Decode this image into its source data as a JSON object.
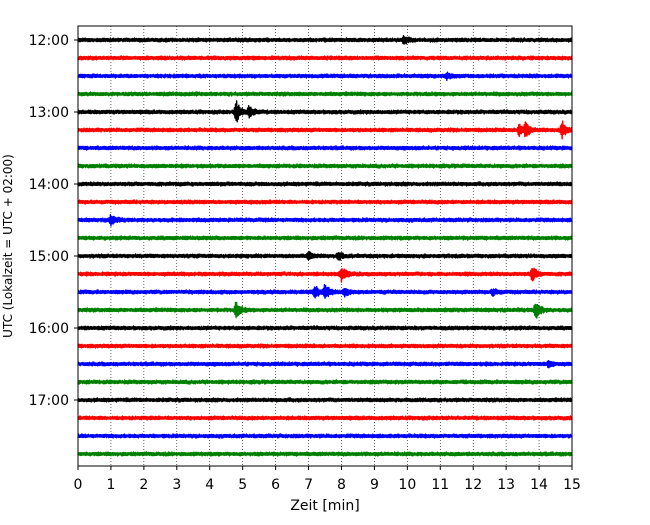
{
  "chart_data": {
    "type": "line",
    "title": "",
    "xlabel": "Zeit  [min]",
    "ylabel": "UTC (Lokalzeit = UTC + 02:00)",
    "xlim": [
      0,
      15
    ],
    "x_ticks": [
      "0",
      "1",
      "2",
      "3",
      "4",
      "5",
      "6",
      "7",
      "8",
      "9",
      "10",
      "11",
      "12",
      "13",
      "14",
      "15"
    ],
    "y_ticks": [
      "12:00",
      "13:00",
      "14:00",
      "15:00",
      "16:00",
      "17:00"
    ],
    "grid": "vertical dotted",
    "trace_colors": [
      "#000000",
      "#ff0000",
      "#0000ff",
      "#008000"
    ],
    "traces": [
      {
        "start": "12:00",
        "color": "#000000",
        "events": [
          {
            "t": 9.9,
            "amp": 4
          }
        ]
      },
      {
        "start": "12:15",
        "color": "#ff0000",
        "events": []
      },
      {
        "start": "12:30",
        "color": "#0000ff",
        "events": [
          {
            "t": 11.2,
            "amp": 3
          }
        ]
      },
      {
        "start": "12:45",
        "color": "#008000",
        "events": []
      },
      {
        "start": "13:00",
        "color": "#000000",
        "events": [
          {
            "t": 4.8,
            "amp": 11
          },
          {
            "t": 5.2,
            "amp": 6
          }
        ]
      },
      {
        "start": "13:15",
        "color": "#ff0000",
        "events": [
          {
            "t": 13.4,
            "amp": 6
          },
          {
            "t": 13.6,
            "amp": 7
          },
          {
            "t": 14.7,
            "amp": 8
          }
        ]
      },
      {
        "start": "13:30",
        "color": "#0000ff",
        "events": []
      },
      {
        "start": "13:45",
        "color": "#008000",
        "events": []
      },
      {
        "start": "14:00",
        "color": "#000000",
        "events": []
      },
      {
        "start": "14:15",
        "color": "#ff0000",
        "events": []
      },
      {
        "start": "14:30",
        "color": "#0000ff",
        "events": [
          {
            "t": 1.0,
            "amp": 5
          }
        ]
      },
      {
        "start": "14:45",
        "color": "#008000",
        "events": []
      },
      {
        "start": "15:00",
        "color": "#000000",
        "events": [
          {
            "t": 7.0,
            "amp": 3
          },
          {
            "t": 7.9,
            "amp": 4
          }
        ]
      },
      {
        "start": "15:15",
        "color": "#ff0000",
        "events": [
          {
            "t": 8.0,
            "amp": 7
          },
          {
            "t": 13.8,
            "amp": 7
          }
        ]
      },
      {
        "start": "15:30",
        "color": "#0000ff",
        "events": [
          {
            "t": 7.2,
            "amp": 6
          },
          {
            "t": 7.5,
            "amp": 8
          },
          {
            "t": 8.1,
            "amp": 4
          },
          {
            "t": 12.6,
            "amp": 3
          }
        ]
      },
      {
        "start": "15:45",
        "color": "#008000",
        "events": [
          {
            "t": 4.8,
            "amp": 8
          },
          {
            "t": 13.9,
            "amp": 9
          }
        ]
      },
      {
        "start": "16:00",
        "color": "#000000",
        "events": []
      },
      {
        "start": "16:15",
        "color": "#ff0000",
        "events": []
      },
      {
        "start": "16:30",
        "color": "#0000ff",
        "events": [
          {
            "t": 14.3,
            "amp": 3
          }
        ]
      },
      {
        "start": "16:45",
        "color": "#008000",
        "events": []
      },
      {
        "start": "17:00",
        "color": "#000000",
        "events": []
      },
      {
        "start": "17:15",
        "color": "#ff0000",
        "events": []
      },
      {
        "start": "17:30",
        "color": "#0000ff",
        "events": []
      },
      {
        "start": "17:45",
        "color": "#008000",
        "events": []
      }
    ]
  }
}
